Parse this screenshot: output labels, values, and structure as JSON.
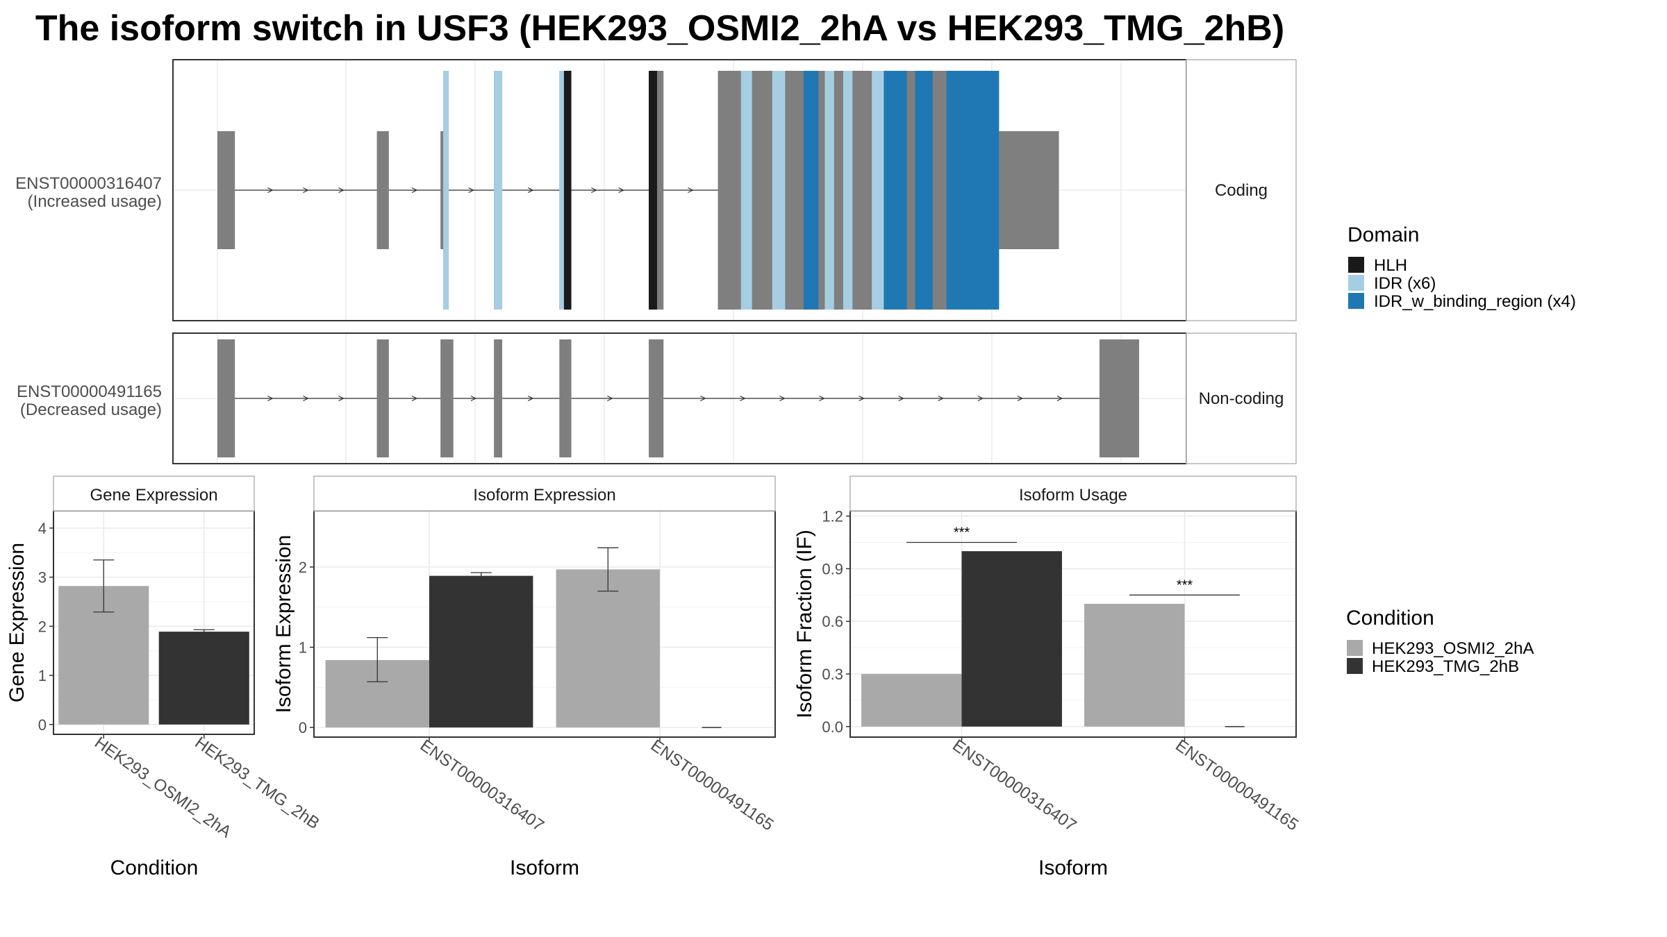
{
  "title": "The isoform switch in USF3 (HEK293_OSMI2_2hA vs HEK293_TMG_2hB)",
  "colors": {
    "exon": "#7f7f7f",
    "HLH": "#1a1a1a",
    "IDR": "#a6cee3",
    "IDR_binding": "#1f78b4",
    "cond_a": "#a9a9a9",
    "cond_b": "#333333",
    "grid": "#ebebeb",
    "frame": "#333333",
    "strip_border": "#b3b3b3"
  },
  "transcripts": [
    {
      "id": "ENST00000316407",
      "usage": "(Increased usage)",
      "coding_label": "Coding",
      "exons": [
        [
          0.0,
          0.019
        ],
        [
          0.173,
          0.186
        ],
        [
          0.242,
          0.251
        ],
        [
          0.3,
          0.309
        ],
        [
          0.371,
          0.379
        ],
        [
          0.468,
          0.484
        ],
        [
          0.543,
          0.913
        ]
      ],
      "cds_start": 0.245,
      "thick_until": 0.791,
      "domains": [
        {
          "type": "IDR",
          "start": 0.245,
          "end": 0.251
        },
        {
          "type": "IDR",
          "start": 0.3,
          "end": 0.309
        },
        {
          "type": "IDR",
          "start": 0.371,
          "end": 0.376
        },
        {
          "type": "HLH",
          "start": 0.376,
          "end": 0.384
        },
        {
          "type": "HLH",
          "start": 0.468,
          "end": 0.477
        },
        {
          "type": "IDR",
          "start": 0.568,
          "end": 0.58
        },
        {
          "type": "IDR",
          "start": 0.602,
          "end": 0.616
        },
        {
          "type": "IDR_binding",
          "start": 0.636,
          "end": 0.652
        },
        {
          "type": "IDR",
          "start": 0.659,
          "end": 0.669
        },
        {
          "type": "IDR",
          "start": 0.679,
          "end": 0.689
        },
        {
          "type": "IDR",
          "start": 0.71,
          "end": 0.723
        },
        {
          "type": "IDR_binding",
          "start": 0.723,
          "end": 0.748
        },
        {
          "type": "IDR_binding",
          "start": 0.757,
          "end": 0.776
        },
        {
          "type": "IDR_binding",
          "start": 0.791,
          "end": 0.848
        }
      ]
    },
    {
      "id": "ENST00000491165",
      "usage": "(Decreased usage)",
      "coding_label": "Non-coding",
      "exons": [
        [
          0.0,
          0.019
        ],
        [
          0.173,
          0.186
        ],
        [
          0.242,
          0.256
        ],
        [
          0.3,
          0.309
        ],
        [
          0.371,
          0.384
        ],
        [
          0.468,
          0.484
        ],
        [
          0.957,
          1.0
        ]
      ],
      "cds_start": null,
      "thick_until": null,
      "domains": []
    }
  ],
  "domain_legend": {
    "title": "Domain",
    "items": [
      {
        "label": "HLH",
        "type": "HLH"
      },
      {
        "label": "IDR (x6)",
        "type": "IDR"
      },
      {
        "label": "IDR_w_binding_region (x4)",
        "type": "IDR_binding"
      }
    ]
  },
  "condition_legend": {
    "title": "Condition",
    "items": [
      {
        "label": "HEK293_OSMI2_2hA",
        "cond": "a"
      },
      {
        "label": "HEK293_TMG_2hB",
        "cond": "b"
      }
    ]
  },
  "chart_data": [
    {
      "type": "bar",
      "title": "Gene Expression",
      "xlabel": "Condition",
      "ylabel": "Gene Expression",
      "ylim": [
        0,
        4
      ],
      "yticks": [
        0,
        1,
        2,
        3,
        4
      ],
      "categories": [
        "HEK293_OSMI2_2hA",
        "HEK293_TMG_2hB"
      ],
      "bars": [
        {
          "category": "HEK293_OSMI2_2hA",
          "cond": "a",
          "value": 2.82,
          "err": [
            2.29,
            3.35
          ]
        },
        {
          "category": "HEK293_TMG_2hB",
          "cond": "b",
          "value": 1.89,
          "err": [
            1.85,
            1.93
          ]
        }
      ]
    },
    {
      "type": "bar",
      "title": "Isoform Expression",
      "xlabel": "Isoform",
      "ylabel": "Isoform Expression",
      "ylim": [
        0,
        2.5
      ],
      "yticks": [
        0,
        1,
        2
      ],
      "categories": [
        "ENST00000316407",
        "ENST00000491165"
      ],
      "bars": [
        {
          "category": "ENST00000316407",
          "cond": "a",
          "value": 0.84,
          "err": [
            0.57,
            1.12
          ]
        },
        {
          "category": "ENST00000316407",
          "cond": "b",
          "value": 1.89,
          "err": [
            1.85,
            1.93
          ]
        },
        {
          "category": "ENST00000491165",
          "cond": "a",
          "value": 1.97,
          "err": [
            1.7,
            2.24
          ]
        },
        {
          "category": "ENST00000491165",
          "cond": "b",
          "value": 0.0,
          "err": null
        }
      ]
    },
    {
      "type": "bar",
      "title": "Isoform Usage",
      "xlabel": "Isoform",
      "ylabel": "Isoform Fraction (IF)",
      "ylim": [
        0,
        1.2
      ],
      "yticks": [
        "0.0",
        "0.3",
        "0.6",
        "0.9",
        "1.2"
      ],
      "categories": [
        "ENST00000316407",
        "ENST00000491165"
      ],
      "bars": [
        {
          "category": "ENST00000316407",
          "cond": "a",
          "value": 0.3,
          "err": null
        },
        {
          "category": "ENST00000316407",
          "cond": "b",
          "value": 1.0,
          "err": null
        },
        {
          "category": "ENST00000491165",
          "cond": "a",
          "value": 0.7,
          "err": null
        },
        {
          "category": "ENST00000491165",
          "cond": "b",
          "value": 0.0,
          "err": null
        }
      ],
      "significance": [
        {
          "category": "ENST00000316407",
          "label": "***",
          "y": 1.05
        },
        {
          "category": "ENST00000491165",
          "label": "***",
          "y": 0.75
        }
      ]
    }
  ]
}
